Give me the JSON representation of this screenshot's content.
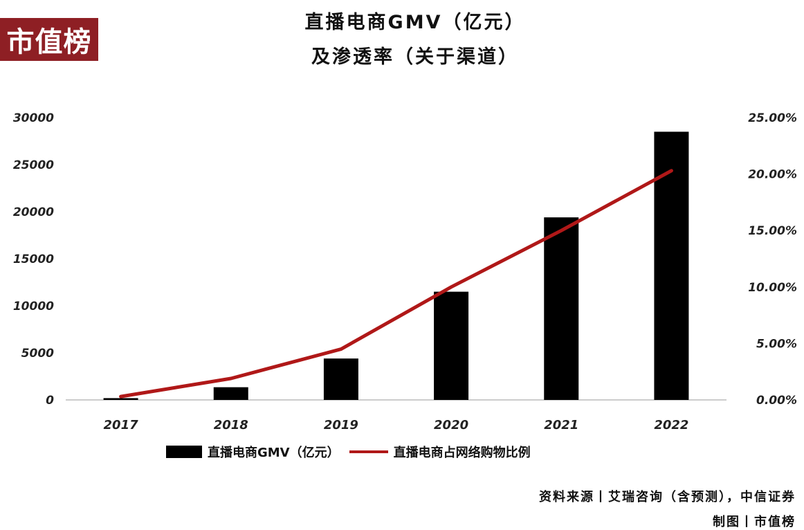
{
  "logo": {
    "text": "市值榜"
  },
  "chart_data": {
    "type": "bar",
    "title": "直播电商GMV（亿元）",
    "subtitle": "及渗透率（关于渠道）",
    "categories": [
      "2017",
      "2018",
      "2019",
      "2020",
      "2021",
      "2022"
    ],
    "series": [
      {
        "name": "直播电商GMV（亿元）",
        "type": "bar",
        "axis": "left",
        "color": "#000000",
        "values": [
          190,
          1350,
          4400,
          11500,
          19400,
          28500
        ]
      },
      {
        "name": "直播电商占网络购物比例",
        "type": "line",
        "axis": "right",
        "color": "#b01818",
        "values": [
          0.3,
          1.9,
          4.5,
          10.0,
          15.0,
          20.3
        ]
      }
    ],
    "y_left": {
      "ylim": [
        0,
        30000
      ],
      "ticks": [
        "0",
        "5000",
        "10000",
        "15000",
        "20000",
        "25000",
        "30000"
      ]
    },
    "y_right": {
      "ylim": [
        0,
        25
      ],
      "ticks": [
        "0.00%",
        "5.00%",
        "10.00%",
        "15.00%",
        "20.00%",
        "25.00%"
      ]
    },
    "xlabel": "",
    "ylabel": "",
    "grid": false,
    "legend_position": "bottom"
  },
  "source": {
    "line1": "资料来源丨艾瑞咨询（含预测），中信证券",
    "line2": "制图丨市值榜"
  }
}
